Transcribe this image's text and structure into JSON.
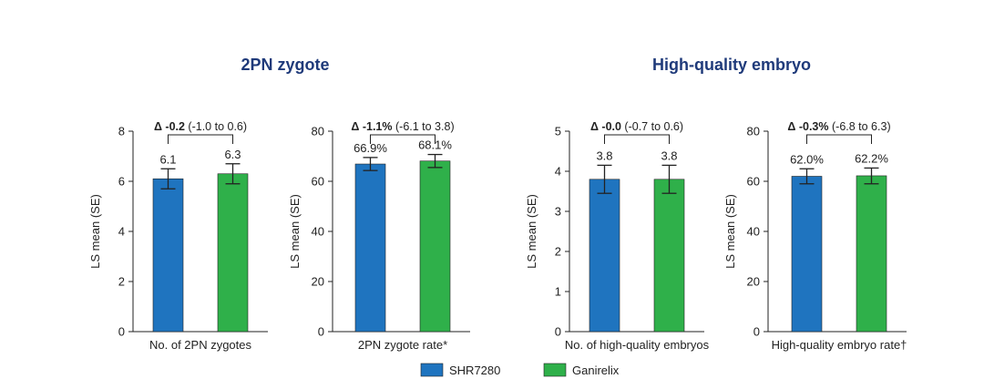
{
  "groups": [
    {
      "title": "2PN zygote"
    },
    {
      "title": "High-quality embryo"
    }
  ],
  "colors": {
    "SHR7280": "#1f74bf",
    "Ganirelix": "#2fb04a"
  },
  "legend": [
    {
      "label": "SHR7280",
      "color": "#1f74bf"
    },
    {
      "label": "Ganirelix",
      "color": "#2fb04a"
    }
  ],
  "chart_data": [
    {
      "type": "bar",
      "group": "2PN zygote",
      "categories": [
        "SHR7280",
        "Ganirelix"
      ],
      "values": [
        6.1,
        6.3
      ],
      "error_low": [
        5.7,
        5.9
      ],
      "error_high": [
        6.5,
        6.7
      ],
      "data_labels": [
        "6.1",
        "6.3"
      ],
      "xlabel": "No. of 2PN zygotes",
      "ylabel": "LS mean (SE)",
      "ylim": [
        0,
        8
      ],
      "yticks": [
        0,
        2,
        4,
        6,
        8
      ],
      "difference": {
        "delta": "Δ -0.2",
        "ci": " (-1.0 to 0.6)"
      }
    },
    {
      "type": "bar",
      "group": "2PN zygote",
      "categories": [
        "SHR7280",
        "Ganirelix"
      ],
      "values": [
        66.9,
        68.1
      ],
      "error_low": [
        64.3,
        65.5
      ],
      "error_high": [
        69.5,
        70.7
      ],
      "data_labels": [
        "66.9%",
        "68.1%"
      ],
      "xlabel": "2PN zygote rate*",
      "ylabel": "LS mean (SE)",
      "ylim": [
        0,
        80
      ],
      "yticks": [
        0,
        20,
        40,
        60,
        80
      ],
      "difference": {
        "delta": "Δ -1.1%",
        "ci": " (-6.1 to 3.8)"
      }
    },
    {
      "type": "bar",
      "group": "High-quality embryo",
      "categories": [
        "SHR7280",
        "Ganirelix"
      ],
      "values": [
        3.8,
        3.8
      ],
      "error_low": [
        3.45,
        3.45
      ],
      "error_high": [
        4.15,
        4.15
      ],
      "data_labels": [
        "3.8",
        "3.8"
      ],
      "xlabel": "No. of high-quality embryos",
      "ylabel": "LS mean (SE)",
      "ylim": [
        0,
        5
      ],
      "yticks": [
        0,
        1,
        2,
        3,
        4,
        5
      ],
      "difference": {
        "delta": "Δ -0.0",
        "ci": " (-0.7 to 0.6)"
      }
    },
    {
      "type": "bar",
      "group": "High-quality embryo",
      "categories": [
        "SHR7280",
        "Ganirelix"
      ],
      "values": [
        62.0,
        62.2
      ],
      "error_low": [
        59.0,
        59.0
      ],
      "error_high": [
        65.0,
        65.3
      ],
      "data_labels": [
        "62.0%",
        "62.2%"
      ],
      "xlabel": "High-quality embryo rate†",
      "ylabel": "LS mean (SE)",
      "ylim": [
        0,
        80
      ],
      "yticks": [
        0,
        20,
        40,
        60,
        80
      ],
      "difference": {
        "delta": "Δ -0.3%",
        "ci": " (-6.8 to 6.3)"
      }
    }
  ]
}
